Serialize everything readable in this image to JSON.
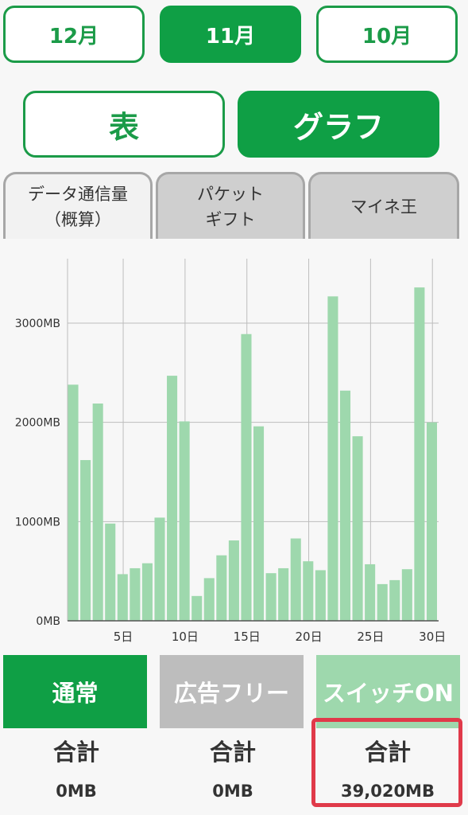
{
  "months": [
    "12月",
    "11月",
    "10月"
  ],
  "view_toggle": {
    "table": "表",
    "graph": "グラフ"
  },
  "tabs": [
    {
      "line1": "データ通信量",
      "line2": "（概算）"
    },
    {
      "line1": "パケット",
      "line2": "ギフト"
    },
    {
      "line1": "マイネ王",
      "line2": ""
    }
  ],
  "chart_data": {
    "type": "bar",
    "x": [
      1,
      2,
      3,
      4,
      5,
      6,
      7,
      8,
      9,
      10,
      11,
      12,
      13,
      14,
      15,
      16,
      17,
      18,
      19,
      20,
      21,
      22,
      23,
      24,
      25,
      26,
      27,
      28,
      29,
      30
    ],
    "values": [
      2380,
      1620,
      2190,
      980,
      470,
      530,
      580,
      1040,
      2470,
      2010,
      250,
      430,
      660,
      810,
      2890,
      1960,
      480,
      530,
      830,
      600,
      510,
      3270,
      2320,
      1860,
      570,
      370,
      410,
      520,
      3360,
      2000
    ],
    "xticks": [
      5,
      10,
      15,
      20,
      25,
      30
    ],
    "xtick_labels": [
      "5日",
      "10日",
      "15日",
      "20日",
      "25日",
      "30日"
    ],
    "yticks": [
      0,
      1000,
      2000,
      3000
    ],
    "ytick_labels": [
      "0MB",
      "1000MB",
      "2000MB",
      "3000MB"
    ],
    "ylim": [
      0,
      3650
    ],
    "bar_color": "#9ed8ad",
    "grid": true
  },
  "segments": {
    "normal": "通常",
    "adfree": "広告フリー",
    "switch": "スイッチON"
  },
  "totals": {
    "label": "合計",
    "normal": "0MB",
    "adfree": "0MB",
    "switch": "39,020MB"
  },
  "colors": {
    "brand_green": "#0f9f45",
    "light_green": "#9ed8ad",
    "highlight_red": "#e03a4a"
  }
}
